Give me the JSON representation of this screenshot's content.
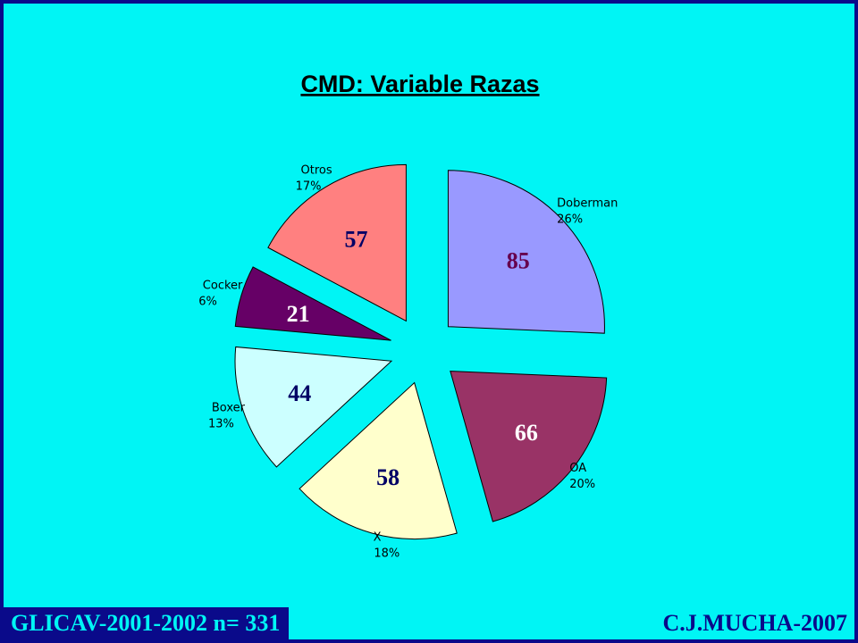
{
  "chart_data": {
    "type": "pie",
    "title": "CMD: Variable Razas",
    "slices": [
      {
        "name": "Doberman",
        "percent_label": "26%",
        "count": 85,
        "color": "#9999ff"
      },
      {
        "name": "OA",
        "percent_label": "20%",
        "count": 66,
        "color": "#993366"
      },
      {
        "name": "X",
        "percent_label": "18%",
        "count": 58,
        "color": "#ffffcc"
      },
      {
        "name": "Boxer",
        "percent_label": "13%",
        "count": 44,
        "color": "#ccffff"
      },
      {
        "name": "Cocker",
        "percent_label": "6%",
        "count": 21,
        "color": "#660066"
      },
      {
        "name": "Otros",
        "percent_label": "17%",
        "count": 57,
        "color": "#ff8080"
      }
    ],
    "legend": "none",
    "exploded": true
  },
  "footer": {
    "left": "GLICAV-2001-2002   n= 331",
    "right": "C.J.MUCHA-2007"
  },
  "colors": {
    "background": "#00f5f5",
    "frame": "#0a0a8a"
  }
}
